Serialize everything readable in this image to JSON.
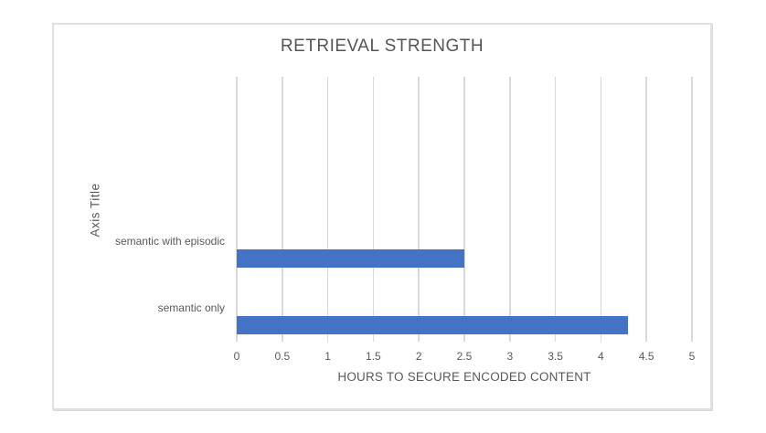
{
  "chart_data": {
    "type": "bar",
    "orientation": "horizontal",
    "title": "RETRIEVAL STRENGTH",
    "categories": [
      "semantic with episodic",
      "semantic only"
    ],
    "values": [
      2.5,
      4.3
    ],
    "xlabel": "HOURS TO SECURE ENCODED CONTENT",
    "ylabel": "Axis Title",
    "xlim": [
      0,
      5
    ],
    "xticks": [
      0,
      0.5,
      1,
      1.5,
      2,
      2.5,
      3,
      3.5,
      4,
      4.5,
      5
    ],
    "xtick_labels": [
      "0",
      "0.5",
      "1",
      "1.5",
      "2",
      "2.5",
      "3",
      "3.5",
      "4",
      "4.5",
      "5"
    ],
    "grid": true,
    "legend": false,
    "bar_color": "#4472C4",
    "gridline_color": "#D9D9D9",
    "text_color": "#595959",
    "title_color": "#555555",
    "frame_border_color": "#E0E0E0",
    "background_color": "#FFFFFF"
  }
}
